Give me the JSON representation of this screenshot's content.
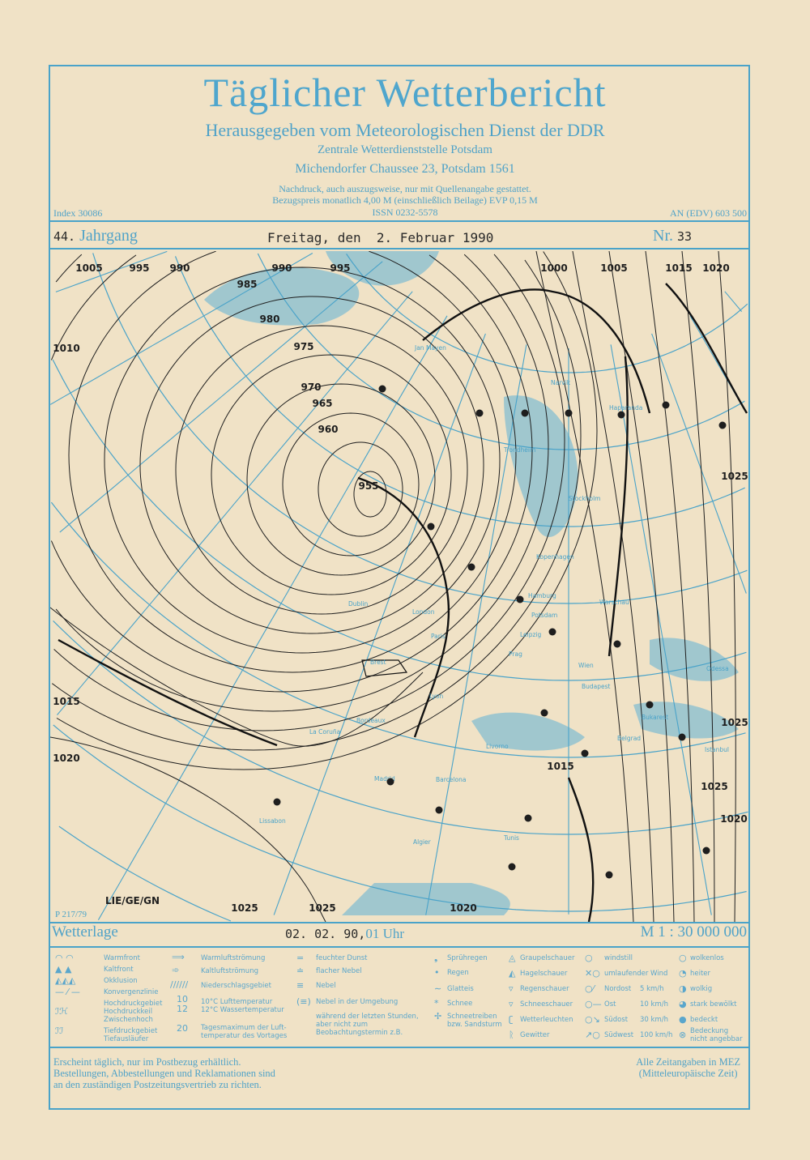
{
  "header": {
    "title": "Täglicher Wetterbericht",
    "publisher": "Herausgegeben vom Meteorologischen Dienst der DDR",
    "office": "Zentrale Wetterdienststelle Potsdam",
    "address": "Michendorfer Chaussee 23, Potsdam 1561",
    "reprint_note": "Nachdruck, auch auszugsweise, nur mit Quellenangabe gestattet.",
    "price_note": "Bezugspreis monatlich 4,00 M (einschließlich Beilage) EVP 0,15 M",
    "issn": "ISSN 0232-5578",
    "index": "Index 30086",
    "an_edv": "AN (EDV) 603 500"
  },
  "issue": {
    "volume_number": "44.",
    "volume_label": "Jahrgang",
    "date": "Freitag, den  2. Februar 1990",
    "nr_label": "Nr.",
    "nr_value": "33"
  },
  "map": {
    "colors": {
      "graticule": "#4aa3c9",
      "sea_ice": "#5fb1d6",
      "isobars": "#1e1e1e",
      "paper": "#f0e2c6"
    },
    "pressure_labels": [
      "1005",
      "995",
      "990",
      "990",
      "995",
      "985",
      "980",
      "975",
      "970",
      "965",
      "960",
      "955",
      "1010",
      "1015",
      "1020",
      "1000",
      "1005",
      "1015",
      "1020",
      "1025",
      "1025",
      "1025",
      "1020",
      "1015",
      "1025",
      "1025",
      "1020"
    ],
    "cities": [
      "Jan Mayen",
      "Narvik",
      "Haparanda",
      "Trondheim",
      "Stockholm",
      "Kopenhagen",
      "Hamburg",
      "Potsdam",
      "Warschau",
      "Leipzig",
      "Prag",
      "Wien",
      "Budapest",
      "Paris",
      "Brest",
      "Dublin",
      "London",
      "Lyon",
      "Bordeaux",
      "La Coruña",
      "Madrid",
      "Lissabon",
      "Barcelona",
      "Algier",
      "Tunis",
      "Livorno",
      "Bukarest",
      "Odessa",
      "Istanbul",
      "Belgrad"
    ],
    "chart_code": "P 217/79",
    "author": "LIE/GE/GN"
  },
  "bar": {
    "label": "Wetterlage",
    "date": "02. 02. 90,",
    "time": "01 Uhr",
    "scale": "M 1 : 30 000 000"
  },
  "legend": {
    "col1": [
      "Warmfront",
      "Kaltfront",
      "Okklusion",
      "Konvergenzlinie",
      "Hochdruckgebiet",
      "Hochdruckkeil",
      "Zwischenhoch",
      "Tiefdruckgebiet",
      "Tiefausläufer"
    ],
    "col2": [
      "Warmluftströmung",
      "Kaltluftströmung",
      "Niederschlagsgebiet",
      "10°C Lufttemperatur",
      "12°C Wassertemperatur",
      "Tagesmaximum der Luft-",
      "temperatur des Vortages"
    ],
    "col2_sym": {
      "temp": "10",
      "water": "12",
      "max": "20"
    },
    "col3": [
      "feuchter Dunst",
      "flacher Nebel",
      "Nebel",
      "Nebel in der Umgebung"
    ],
    "col3_note": [
      "während der letzten Stunden, aber nicht zum",
      "Beobachtungstermin z.B."
    ],
    "col4": [
      "Sprühregen",
      "Regen",
      "Glatteis",
      "Schnee",
      "Schneetreiben",
      "bzw. Sandsturm"
    ],
    "col5": [
      "Graupelschauer",
      "Hagelschauer",
      "Regenschauer",
      "Schneeschauer",
      "Wetterleuchten",
      "Gewitter"
    ],
    "col6": [
      "windstill",
      "umlaufender Wind",
      "Nordost",
      "Ost",
      "Südost",
      "Südwest"
    ],
    "col6_speed": [
      "5 km/h",
      "10 km/h",
      "30 km/h",
      "100 km/h"
    ],
    "col7": [
      "wolkenlos",
      "heiter",
      "wolkig",
      "stark bewölkt",
      "bedeckt",
      "Bedeckung",
      "nicht angebbar"
    ]
  },
  "footer": {
    "left": [
      "Erscheint täglich, nur im Postbezug erhältlich.",
      "Bestellungen, Abbestellungen und Reklamationen sind",
      "an den zuständigen Postzeitungsvertrieb zu richten."
    ],
    "right": [
      "Alle Zeitangaben in MEZ",
      "(Mitteleuropäische Zeit)"
    ]
  }
}
